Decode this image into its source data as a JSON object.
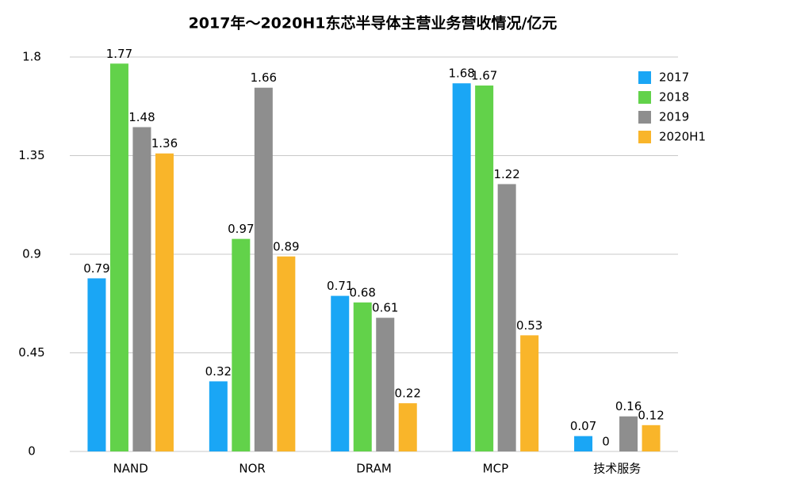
{
  "chart_data": {
    "type": "bar",
    "title": "2017年～2020H1东芯半导体主营业务营收情况/亿元",
    "categories": [
      "NAND",
      "NOR",
      "DRAM",
      "MCP",
      "技术服务"
    ],
    "series": [
      {
        "name": "2017",
        "color": "#1aa6f5",
        "values": [
          0.79,
          0.32,
          0.71,
          1.68,
          0.07
        ]
      },
      {
        "name": "2018",
        "color": "#62d24a",
        "values": [
          1.77,
          0.97,
          0.68,
          1.67,
          0
        ]
      },
      {
        "name": "2019",
        "color": "#8e8e8e",
        "values": [
          1.48,
          1.66,
          0.61,
          1.22,
          0.16
        ]
      },
      {
        "name": "2020H1",
        "color": "#f9b52a",
        "values": [
          1.36,
          0.89,
          0.22,
          0.53,
          0.12
        ]
      }
    ],
    "ylim": [
      0,
      1.8
    ],
    "yticks": [
      0,
      0.45,
      0.9,
      1.35,
      1.8
    ],
    "grid": true,
    "legend": "top-right"
  }
}
